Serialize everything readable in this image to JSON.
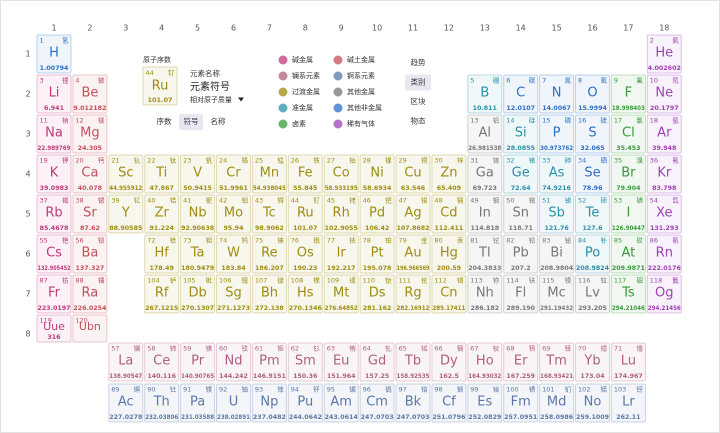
{
  "groups": [
    1,
    2,
    3,
    4,
    5,
    6,
    7,
    8,
    9,
    10,
    11,
    12,
    13,
    14,
    15,
    16,
    17,
    18
  ],
  "periods": [
    1,
    2,
    3,
    4,
    5,
    6,
    7,
    8
  ],
  "key": {
    "title": "原子序数",
    "card": {
      "number": 44,
      "name": "钌",
      "symbol": "Ru",
      "mass": "101.07"
    },
    "name_label": "元素名称",
    "symbol_label": "元素符号",
    "mass_label": "相对原子质量",
    "tabs": [
      "序数",
      "符号",
      "名称"
    ],
    "active_tab": 1
  },
  "views": {
    "items": [
      "趋势",
      "类别",
      "区块",
      "物态"
    ],
    "active": 1
  },
  "categories": [
    {
      "name": "碱金属",
      "color": "#c0397a"
    },
    {
      "name": "碱土金属",
      "color": "#c4505a"
    },
    {
      "name": "镧系元素",
      "color": "#b0607e"
    },
    {
      "name": "锕系元素",
      "color": "#5a78a8"
    },
    {
      "name": "过渡金属",
      "color": "#a08c10"
    },
    {
      "name": "其他金属",
      "color": "#777777"
    },
    {
      "name": "准金属",
      "color": "#2a90a8"
    },
    {
      "name": "其他非金属",
      "color": "#2a6fc8"
    },
    {
      "name": "卤素",
      "color": "#3a9a3a"
    },
    {
      "name": "稀有气体",
      "color": "#a040b8"
    }
  ],
  "elements": [
    [
      1,
      "H",
      "氢",
      "1.00794",
      7
    ],
    [
      2,
      "He",
      "氦",
      "4.002602",
      9
    ],
    [
      3,
      "Li",
      "锂",
      "6.941",
      0
    ],
    [
      4,
      "Be",
      "铍",
      "9.012182",
      1
    ],
    [
      5,
      "B",
      "硼",
      "10.811",
      6
    ],
    [
      6,
      "C",
      "碳",
      "12.0107",
      7
    ],
    [
      7,
      "N",
      "氮",
      "14.0067",
      7
    ],
    [
      8,
      "O",
      "氧",
      "15.9994",
      7
    ],
    [
      9,
      "F",
      "氟",
      "18.998403",
      8
    ],
    [
      10,
      "Ne",
      "氖",
      "20.1797",
      9
    ],
    [
      11,
      "Na",
      "钠",
      "22.989769",
      0
    ],
    [
      12,
      "Mg",
      "镁",
      "24.305",
      1
    ],
    [
      13,
      "Al",
      "铝",
      "26.981538",
      5
    ],
    [
      14,
      "Si",
      "硅",
      "28.0855",
      6
    ],
    [
      15,
      "P",
      "磷",
      "30.973762",
      7
    ],
    [
      16,
      "S",
      "硫",
      "32.065",
      7
    ],
    [
      17,
      "Cl",
      "氯",
      "35.453",
      8
    ],
    [
      18,
      "Ar",
      "氩",
      "39.948",
      9
    ],
    [
      19,
      "K",
      "钾",
      "39.0983",
      0
    ],
    [
      20,
      "Ca",
      "钙",
      "40.078",
      1
    ],
    [
      21,
      "Sc",
      "钪",
      "44.955912",
      4
    ],
    [
      22,
      "Ti",
      "钛",
      "47.867",
      4
    ],
    [
      23,
      "V",
      "钒",
      "50.9415",
      4
    ],
    [
      24,
      "Cr",
      "铬",
      "51.9961",
      4
    ],
    [
      25,
      "Mn",
      "锰",
      "54.938045",
      4
    ],
    [
      26,
      "Fe",
      "铁",
      "55.845",
      4
    ],
    [
      27,
      "Co",
      "钴",
      "58.933195",
      4
    ],
    [
      28,
      "Ni",
      "镍",
      "58.6934",
      4
    ],
    [
      29,
      "Cu",
      "铜",
      "63.546",
      4
    ],
    [
      30,
      "Zn",
      "锌",
      "65.409",
      4
    ],
    [
      31,
      "Ga",
      "镓",
      "69.723",
      5
    ],
    [
      32,
      "Ge",
      "锗",
      "72.64",
      6
    ],
    [
      33,
      "As",
      "砷",
      "74.9216",
      6
    ],
    [
      34,
      "Se",
      "硒",
      "78.96",
      7
    ],
    [
      35,
      "Br",
      "溴",
      "79.904",
      8
    ],
    [
      36,
      "Kr",
      "氪",
      "83.798",
      9
    ],
    [
      37,
      "Rb",
      "铷",
      "85.4678",
      0
    ],
    [
      38,
      "Sr",
      "锶",
      "87.62",
      1
    ],
    [
      39,
      "Y",
      "钇",
      "88.90585",
      4
    ],
    [
      40,
      "Zr",
      "锆",
      "91.224",
      4
    ],
    [
      41,
      "Nb",
      "铌",
      "92.90638",
      4
    ],
    [
      42,
      "Mo",
      "钼",
      "95.94",
      4
    ],
    [
      43,
      "Tc",
      "锝",
      "98.9062",
      4
    ],
    [
      44,
      "Ru",
      "钌",
      "101.07",
      4
    ],
    [
      45,
      "Rh",
      "铑",
      "102.9055",
      4
    ],
    [
      46,
      "Pd",
      "钯",
      "106.42",
      4
    ],
    [
      47,
      "Ag",
      "银",
      "107.8682",
      4
    ],
    [
      48,
      "Cd",
      "镉",
      "112.411",
      4
    ],
    [
      49,
      "In",
      "铟",
      "114.818",
      5
    ],
    [
      50,
      "Sn",
      "锡",
      "118.71",
      5
    ],
    [
      51,
      "Sb",
      "锑",
      "121.76",
      6
    ],
    [
      52,
      "Te",
      "碲",
      "127.6",
      6
    ],
    [
      53,
      "I",
      "碘",
      "126.90447",
      8
    ],
    [
      54,
      "Xe",
      "氙",
      "131.293",
      9
    ],
    [
      55,
      "Cs",
      "铯",
      "132.905452",
      0
    ],
    [
      56,
      "Ba",
      "钡",
      "137.327",
      1
    ],
    [
      57,
      "La",
      "镧",
      "138.90547",
      2
    ],
    [
      58,
      "Ce",
      "铈",
      "140.116",
      2
    ],
    [
      59,
      "Pr",
      "镨",
      "140.90765",
      2
    ],
    [
      60,
      "Nd",
      "钕",
      "144.242",
      2
    ],
    [
      61,
      "Pm",
      "钷",
      "146.9151",
      2
    ],
    [
      62,
      "Sm",
      "钐",
      "150.36",
      2
    ],
    [
      63,
      "Eu",
      "铕",
      "151.964",
      2
    ],
    [
      64,
      "Gd",
      "钆",
      "157.25",
      2
    ],
    [
      65,
      "Tb",
      "铽",
      "158.92535",
      2
    ],
    [
      66,
      "Dy",
      "镝",
      "162.5",
      2
    ],
    [
      67,
      "Ho",
      "钬",
      "164.93032",
      2
    ],
    [
      68,
      "Er",
      "铒",
      "167.259",
      2
    ],
    [
      69,
      "Tm",
      "铥",
      "168.93421",
      2
    ],
    [
      70,
      "Yb",
      "镱",
      "173.04",
      2
    ],
    [
      71,
      "Lu",
      "镥",
      "174.967",
      2
    ],
    [
      72,
      "Hf",
      "铪",
      "178.49",
      4
    ],
    [
      73,
      "Ta",
      "钽",
      "180.9479",
      4
    ],
    [
      74,
      "W",
      "钨",
      "183.84",
      4
    ],
    [
      75,
      "Re",
      "铼",
      "186.207",
      4
    ],
    [
      76,
      "Os",
      "锇",
      "190.23",
      4
    ],
    [
      77,
      "Ir",
      "铱",
      "192.217",
      4
    ],
    [
      78,
      "Pt",
      "铂",
      "195.078",
      4
    ],
    [
      79,
      "Au",
      "金",
      "196.966569",
      4
    ],
    [
      80,
      "Hg",
      "汞",
      "200.59",
      4
    ],
    [
      81,
      "Tl",
      "铊",
      "204.3833",
      5
    ],
    [
      82,
      "Pb",
      "铅",
      "207.2",
      5
    ],
    [
      83,
      "Bi",
      "铋",
      "208.9804",
      5
    ],
    [
      84,
      "Po",
      "钋",
      "208.9824",
      6
    ],
    [
      85,
      "At",
      "砹",
      "209.9871",
      8
    ],
    [
      86,
      "Rn",
      "氡",
      "222.0176",
      9
    ],
    [
      87,
      "Fr",
      "钫",
      "223.0197",
      0
    ],
    [
      88,
      "Ra",
      "镭",
      "226.0254",
      1
    ],
    [
      89,
      "Ac",
      "锕",
      "227.0278",
      3
    ],
    [
      90,
      "Th",
      "钍",
      "232.03806",
      3
    ],
    [
      91,
      "Pa",
      "镤",
      "231.03588",
      3
    ],
    [
      92,
      "U",
      "铀",
      "238.02891",
      3
    ],
    [
      93,
      "Np",
      "镎",
      "237.0482",
      3
    ],
    [
      94,
      "Pu",
      "钚",
      "244.0642",
      3
    ],
    [
      95,
      "Am",
      "镅",
      "243.0614",
      3
    ],
    [
      96,
      "Cm",
      "锔",
      "247.0703",
      3
    ],
    [
      97,
      "Bk",
      "锫",
      "247.0703",
      3
    ],
    [
      98,
      "Cf",
      "锎",
      "251.0796",
      3
    ],
    [
      99,
      "Es",
      "锿",
      "252.0829",
      3
    ],
    [
      100,
      "Fm",
      "镄",
      "257.0951",
      3
    ],
    [
      101,
      "Md",
      "钔",
      "258.0986",
      3
    ],
    [
      102,
      "No",
      "锘",
      "259.1009",
      3
    ],
    [
      103,
      "Lr",
      "铹",
      "262.11",
      3
    ],
    [
      104,
      "Rf",
      "𬬻",
      "267.1215",
      4
    ],
    [
      105,
      "Db",
      "𬭊",
      "270.1307",
      4
    ],
    [
      106,
      "Sg",
      "𬭳",
      "271.1273",
      4
    ],
    [
      107,
      "Bh",
      "𬭛",
      "272.138",
      4
    ],
    [
      108,
      "Hs",
      "𬭶",
      "270.1346",
      4
    ],
    [
      109,
      "Mt",
      "鿏",
      "276.64852",
      4
    ],
    [
      110,
      "Ds",
      "𫟼",
      "281.162",
      4
    ],
    [
      111,
      "Rg",
      "𬬭",
      "282.16912",
      4
    ],
    [
      112,
      "Cn",
      "鿔",
      "285.17411",
      4
    ],
    [
      113,
      "Nh",
      "鿭",
      "286.182",
      5
    ],
    [
      114,
      "Fl",
      "𫓧",
      "289.190",
      5
    ],
    [
      115,
      "Mc",
      "镆",
      "291.19432",
      5
    ],
    [
      116,
      "Lv",
      "𫟷",
      "293.205",
      5
    ],
    [
      117,
      "Ts",
      "鿬",
      "294.21046",
      8
    ],
    [
      118,
      "Og",
      "鿫",
      "294.21456",
      9
    ],
    [
      119,
      "Uue",
      null,
      "316",
      0
    ],
    [
      120,
      "Ubn",
      null,
      null,
      1
    ]
  ]
}
